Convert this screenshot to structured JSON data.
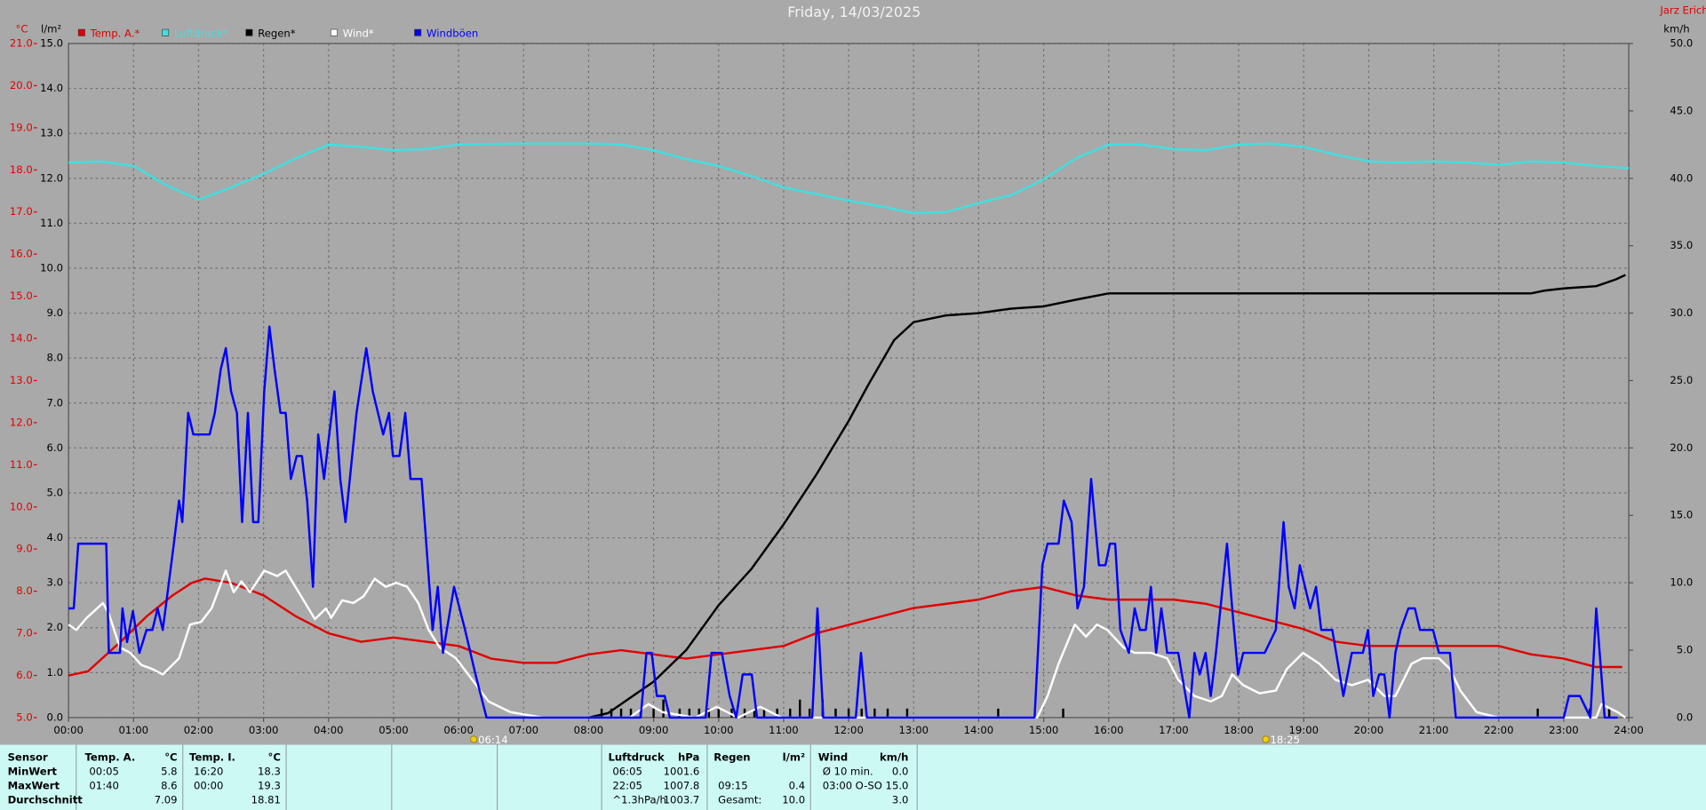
{
  "chart_data": {
    "type": "line",
    "title": "Friday, 14/03/2025",
    "author": "Jarz Erich",
    "y_label": "°C",
    "y3_label": "l/m²",
    "y2_label": "km/h",
    "xlim": [
      0,
      24
    ],
    "xticks": [
      {
        "value": 0,
        "label": "00:00"
      },
      {
        "value": 1,
        "label": "01:00"
      },
      {
        "value": 2,
        "label": "02:00"
      },
      {
        "value": 3,
        "label": "03:00"
      },
      {
        "value": 4,
        "label": "04:00"
      },
      {
        "value": 5,
        "label": "05:00"
      },
      {
        "value": 6,
        "label": "06:00"
      },
      {
        "value": 7,
        "label": "07:00"
      },
      {
        "value": 8,
        "label": "08:00"
      },
      {
        "value": 9,
        "label": "09:00"
      },
      {
        "value": 10,
        "label": "10:00"
      },
      {
        "value": 11,
        "label": "11:00"
      },
      {
        "value": 12,
        "label": "12:00"
      },
      {
        "value": 13,
        "label": "13:00"
      },
      {
        "value": 14,
        "label": "14:00"
      },
      {
        "value": 15,
        "label": "15:00"
      },
      {
        "value": 16,
        "label": "16:00"
      },
      {
        "value": 17,
        "label": "17:00"
      },
      {
        "value": 18,
        "label": "18:00"
      },
      {
        "value": 19,
        "label": "19:00"
      },
      {
        "value": 20,
        "label": "20:00"
      },
      {
        "value": 21,
        "label": "21:00"
      },
      {
        "value": 22,
        "label": "22:00"
      },
      {
        "value": 23,
        "label": "23:00"
      },
      {
        "value": 24,
        "label": "24:00"
      }
    ],
    "ylim": [
      5,
      21
    ],
    "yticks": [
      {
        "value": 5,
        "label": "5.0"
      },
      {
        "value": 6,
        "label": "6.0"
      },
      {
        "value": 7,
        "label": "7.0"
      },
      {
        "value": 8,
        "label": "8.0"
      },
      {
        "value": 9,
        "label": "9.0"
      },
      {
        "value": 10,
        "label": "10.0"
      },
      {
        "value": 11,
        "label": "11.0"
      },
      {
        "value": 12,
        "label": "12.0"
      },
      {
        "value": 13,
        "label": "13.0"
      },
      {
        "value": 14,
        "label": "14.0"
      },
      {
        "value": 15,
        "label": "15.0"
      },
      {
        "value": 16,
        "label": "16.0"
      },
      {
        "value": 17,
        "label": "17.0"
      },
      {
        "value": 18,
        "label": "18.0"
      },
      {
        "value": 19,
        "label": "19.0"
      },
      {
        "value": 20,
        "label": "20.0"
      },
      {
        "value": 21,
        "label": "21.0"
      }
    ],
    "y3lim": [
      0,
      15
    ],
    "y3ticks": [
      {
        "value": 0,
        "label": "0.0"
      },
      {
        "value": 1,
        "label": "1.0"
      },
      {
        "value": 2,
        "label": "2.0"
      },
      {
        "value": 3,
        "label": "3.0"
      },
      {
        "value": 4,
        "label": "4.0"
      },
      {
        "value": 5,
        "label": "5.0"
      },
      {
        "value": 6,
        "label": "6.0"
      },
      {
        "value": 7,
        "label": "7.0"
      },
      {
        "value": 8,
        "label": "8.0"
      },
      {
        "value": 9,
        "label": "9.0"
      },
      {
        "value": 10,
        "label": "10.0"
      },
      {
        "value": 11,
        "label": "11.0"
      },
      {
        "value": 12,
        "label": "12.0"
      },
      {
        "value": 13,
        "label": "13.0"
      },
      {
        "value": 14,
        "label": "14.0"
      },
      {
        "value": 15,
        "label": "15.0"
      }
    ],
    "y2lim": [
      0,
      50
    ],
    "y2ticks": [
      {
        "value": 0,
        "label": "0.0"
      },
      {
        "value": 5,
        "label": "5.0"
      },
      {
        "value": 10,
        "label": "10.0"
      },
      {
        "value": 15,
        "label": "15.0"
      },
      {
        "value": 20,
        "label": "20.0"
      },
      {
        "value": 25,
        "label": "25.0"
      },
      {
        "value": 30,
        "label": "30.0"
      },
      {
        "value": 35,
        "label": "35.0"
      },
      {
        "value": 40,
        "label": "40.0"
      },
      {
        "value": 45,
        "label": "45.0"
      },
      {
        "value": 50,
        "label": "50.0"
      }
    ],
    "pressure_lim": [
      956,
      1016
    ],
    "grid": true,
    "series": [
      {
        "name": "Temp. A.*",
        "color": "#e00000",
        "axis": "y",
        "x": [
          0,
          0.3,
          0.8,
          1.2,
          1.6,
          1.9,
          2.1,
          2.5,
          3,
          3.5,
          4,
          4.5,
          5,
          5.5,
          6,
          6.5,
          7,
          7.5,
          8,
          8.5,
          9,
          9.5,
          10,
          10.5,
          11,
          11.5,
          12,
          12.5,
          13,
          13.5,
          14,
          14.5,
          15,
          15.5,
          16,
          16.5,
          17,
          17.5,
          18,
          18.5,
          19,
          19.5,
          20,
          20.5,
          21,
          21.5,
          22,
          22.5,
          23,
          23.5,
          23.9
        ],
        "values": [
          6.0,
          6.1,
          6.8,
          7.4,
          7.9,
          8.2,
          8.3,
          8.2,
          7.9,
          7.4,
          7.0,
          6.8,
          6.9,
          6.8,
          6.7,
          6.4,
          6.3,
          6.3,
          6.5,
          6.6,
          6.5,
          6.4,
          6.5,
          6.6,
          6.7,
          7.0,
          7.2,
          7.4,
          7.6,
          7.7,
          7.8,
          8.0,
          8.1,
          7.9,
          7.8,
          7.8,
          7.8,
          7.7,
          7.5,
          7.3,
          7.1,
          6.8,
          6.7,
          6.7,
          6.7,
          6.7,
          6.7,
          6.5,
          6.4,
          6.2,
          6.2
        ]
      },
      {
        "name": "Luftdruck*",
        "color": "#40e0e0",
        "axis": "pressure",
        "x": [
          0,
          0.5,
          1,
          1.5,
          2,
          2.5,
          3,
          3.5,
          4,
          4.5,
          5,
          5.5,
          6,
          7,
          8,
          8.5,
          9,
          9.5,
          10,
          10.5,
          11,
          11.5,
          12,
          12.5,
          13,
          13.5,
          14,
          14.5,
          15,
          15.5,
          16,
          16.5,
          17,
          17.5,
          18,
          18.5,
          19,
          19.5,
          20,
          20.5,
          21,
          21.5,
          22,
          22.5,
          23,
          23.5,
          24
        ],
        "values": [
          1005.4,
          1005.5,
          1005.1,
          1003.4,
          1002.1,
          1003.2,
          1004.4,
          1005.8,
          1007.0,
          1006.8,
          1006.5,
          1006.6,
          1007.0,
          1007.1,
          1007.1,
          1007.0,
          1006.5,
          1005.7,
          1005.1,
          1004.2,
          1003.2,
          1002.6,
          1002.0,
          1001.5,
          1000.9,
          1001.0,
          1001.8,
          1002.5,
          1003.9,
          1005.8,
          1007.0,
          1007.0,
          1006.6,
          1006.5,
          1007.0,
          1007.1,
          1006.8,
          1006.1,
          1005.5,
          1005.4,
          1005.5,
          1005.4,
          1005.2,
          1005.5,
          1005.4,
          1005.1,
          1004.9
        ]
      },
      {
        "name": "Regen*",
        "color": "#000000",
        "axis": "y3",
        "x": [
          8,
          8.3,
          8.7,
          9,
          9.5,
          10,
          10.5,
          11,
          11.5,
          12,
          12.3,
          12.7,
          13,
          13.5,
          14,
          14.5,
          15,
          15.5,
          16,
          22.5,
          22.7,
          23,
          23.5,
          23.8,
          23.95
        ],
        "values": [
          0,
          0.1,
          0.5,
          0.8,
          1.5,
          2.5,
          3.3,
          4.3,
          5.4,
          6.6,
          7.4,
          8.4,
          8.8,
          8.95,
          9.0,
          9.1,
          9.15,
          9.3,
          9.44,
          9.44,
          9.5,
          9.55,
          9.6,
          9.75,
          9.85
        ]
      },
      {
        "name": "Wind*",
        "color": "#ffffff",
        "axis": "y2",
        "x": [
          0,
          0.12,
          0.28,
          0.53,
          0.62,
          0.79,
          0.95,
          1.12,
          1.29,
          1.45,
          1.7,
          1.87,
          2.04,
          2.2,
          2.42,
          2.54,
          2.66,
          2.79,
          3.01,
          3.21,
          3.34,
          3.54,
          3.79,
          3.96,
          4.04,
          4.21,
          4.38,
          4.54,
          4.71,
          4.88,
          5.04,
          5.21,
          5.38,
          5.54,
          5.71,
          5.96,
          6.21,
          6.46,
          6.8,
          7.3,
          8.13,
          8.63,
          8.92,
          9.14,
          9.64,
          9.97,
          10.3,
          10.64,
          10.97,
          14.9,
          15.06,
          15.23,
          15.48,
          15.65,
          15.82,
          15.98,
          16.23,
          16.4,
          16.65,
          16.9,
          17.07,
          17.32,
          17.57,
          17.74,
          17.9,
          18.07,
          18.32,
          18.57,
          18.74,
          18.99,
          19.24,
          19.49,
          19.74,
          19.99,
          20.24,
          20.41,
          20.66,
          20.83,
          21.08,
          21.25,
          21.41,
          21.66,
          22,
          23.5,
          23.58,
          23.83,
          23.95
        ],
        "values": [
          6.9,
          6.5,
          7.4,
          8.5,
          7.7,
          5.2,
          4.8,
          3.9,
          3.6,
          3.2,
          4.4,
          6.9,
          7.1,
          8.1,
          10.9,
          9.3,
          10.1,
          9.3,
          10.9,
          10.5,
          10.9,
          9.3,
          7.3,
          8.1,
          7.4,
          8.7,
          8.5,
          9.0,
          10.3,
          9.7,
          10.0,
          9.7,
          8.5,
          6.5,
          5.2,
          4.4,
          2.8,
          1.2,
          0.4,
          0,
          0,
          0,
          1.0,
          0.4,
          0,
          0.8,
          0,
          0.8,
          0,
          0,
          1.6,
          4.0,
          6.9,
          6.0,
          6.9,
          6.5,
          5.2,
          4.8,
          4.8,
          4.4,
          2.8,
          1.6,
          1.2,
          1.6,
          3.2,
          2.4,
          1.8,
          2.0,
          3.6,
          4.8,
          4.0,
          2.8,
          2.4,
          2.8,
          1.6,
          1.6,
          4.0,
          4.4,
          4.4,
          3.6,
          2.0,
          0.4,
          0,
          0,
          1.0,
          0.4,
          0
        ]
      },
      {
        "name": "Windböen",
        "color": "#0000ff",
        "axis": "y2",
        "x": [
          0,
          0.08,
          0.15,
          0.58,
          0.62,
          0.79,
          0.83,
          0.9,
          0.99,
          1.09,
          1.2,
          1.29,
          1.37,
          1.45,
          1.62,
          1.7,
          1.75,
          1.84,
          1.92,
          2.17,
          2.25,
          2.34,
          2.42,
          2.5,
          2.59,
          2.67,
          2.76,
          2.84,
          2.92,
          3.01,
          3.09,
          3.17,
          3.26,
          3.34,
          3.42,
          3.51,
          3.59,
          3.67,
          3.76,
          3.84,
          3.93,
          4.01,
          4.09,
          4.18,
          4.26,
          4.43,
          4.58,
          4.68,
          4.76,
          4.84,
          4.93,
          4.99,
          5.09,
          5.18,
          5.26,
          5.43,
          5.6,
          5.68,
          5.76,
          5.93,
          6.1,
          6.26,
          6.43,
          8.8,
          8.89,
          8.97,
          9.05,
          9.17,
          9.25,
          9.8,
          9.89,
          10.05,
          10.17,
          10.27,
          10.37,
          10.51,
          10.59,
          11.44,
          11.52,
          11.61,
          12.11,
          12.19,
          12.28,
          14.86,
          14.98,
          15.06,
          15.23,
          15.31,
          15.43,
          15.52,
          15.62,
          15.73,
          15.85,
          15.95,
          16.02,
          16.1,
          16.18,
          16.31,
          16.4,
          16.48,
          16.57,
          16.65,
          16.73,
          16.81,
          16.9,
          17.07,
          17.24,
          17.32,
          17.4,
          17.49,
          17.57,
          17.65,
          17.82,
          17.9,
          17.99,
          18.07,
          18.4,
          18.57,
          18.69,
          18.77,
          18.86,
          18.94,
          19.02,
          19.1,
          19.19,
          19.27,
          19.44,
          19.61,
          19.74,
          19.91,
          19.99,
          20.07,
          20.16,
          20.24,
          20.32,
          20.41,
          20.49,
          20.61,
          20.71,
          20.79,
          20.99,
          21.08,
          21.25,
          21.34,
          23,
          23.08,
          23.25,
          23.41,
          23.5,
          23.63,
          23.83
        ],
        "values": [
          8.1,
          8.1,
          12.9,
          12.9,
          4.8,
          4.8,
          8.1,
          5.6,
          7.9,
          4.8,
          6.5,
          6.5,
          8.1,
          6.5,
          12.9,
          16.1,
          14.5,
          22.6,
          21.0,
          21.0,
          22.6,
          25.8,
          27.4,
          24.2,
          22.6,
          14.5,
          22.6,
          14.5,
          14.5,
          24.2,
          29.0,
          25.8,
          22.6,
          22.6,
          17.7,
          19.4,
          19.4,
          16.1,
          9.7,
          21.0,
          17.7,
          21.0,
          24.2,
          17.7,
          14.5,
          22.6,
          27.4,
          24.2,
          22.6,
          21.0,
          22.6,
          19.4,
          19.4,
          22.6,
          17.7,
          17.7,
          6.5,
          9.7,
          4.8,
          9.7,
          6.5,
          3.2,
          0,
          0,
          4.8,
          4.8,
          1.6,
          1.6,
          0,
          0,
          4.8,
          4.8,
          1.6,
          0,
          3.2,
          3.2,
          0,
          0,
          8.1,
          0,
          0,
          4.8,
          0,
          0,
          11.3,
          12.9,
          12.9,
          16.1,
          14.5,
          8.1,
          9.7,
          17.7,
          11.3,
          11.3,
          12.9,
          12.9,
          6.5,
          4.8,
          8.1,
          6.5,
          6.5,
          9.7,
          4.8,
          8.1,
          4.8,
          4.8,
          0,
          4.8,
          3.2,
          4.8,
          1.6,
          4.8,
          12.9,
          8.1,
          3.2,
          4.8,
          4.8,
          6.5,
          14.5,
          9.7,
          8.1,
          11.3,
          9.7,
          8.1,
          9.7,
          6.5,
          6.5,
          1.6,
          4.8,
          4.8,
          6.5,
          1.6,
          3.2,
          3.2,
          0,
          4.8,
          6.5,
          8.1,
          8.1,
          6.5,
          6.5,
          4.8,
          4.8,
          0,
          0,
          1.6,
          1.6,
          0,
          8.1,
          0,
          0
        ]
      }
    ],
    "rain_bars": {
      "color": "#000000",
      "axis": "y3",
      "x": [
        8.2,
        8.35,
        8.5,
        8.65,
        8.8,
        9.0,
        9.15,
        9.4,
        9.55,
        9.7,
        9.85,
        10.0,
        10.2,
        10.4,
        10.55,
        10.7,
        10.9,
        11.1,
        11.25,
        11.4,
        11.6,
        11.8,
        12.0,
        12.2,
        12.4,
        12.6,
        12.9,
        14.3,
        15.3,
        22.6,
        23.4,
        23.7
      ],
      "values": [
        0.2,
        0.2,
        0.2,
        0.2,
        0.2,
        0.2,
        0.4,
        0.2,
        0.2,
        0.2,
        0.2,
        0.2,
        0.2,
        0.2,
        0.2,
        0.2,
        0.2,
        0.2,
        0.4,
        0.2,
        0.4,
        0.2,
        0.2,
        0.2,
        0.2,
        0.2,
        0.2,
        0.2,
        0.2,
        0.2,
        0.2,
        0.2
      ]
    },
    "sun_events": [
      {
        "x": 6.2333,
        "label": "06:14"
      },
      {
        "x": 18.4167,
        "label": "18:25"
      }
    ]
  },
  "stats": {
    "row_labels": [
      "Sensor",
      "MinWert",
      "MaxWert",
      "Durchschnitt"
    ],
    "columns": [
      {
        "name": "Temp. A.",
        "unit": "°C",
        "rows": [
          [
            "00:05",
            "5.8"
          ],
          [
            "01:40",
            "8.6"
          ],
          [
            null,
            "7.09"
          ]
        ]
      },
      {
        "name": "Temp. I.",
        "unit": "°C",
        "rows": [
          [
            "16:20",
            "18.3"
          ],
          [
            "00:00",
            "19.3"
          ],
          [
            null,
            "18.81"
          ]
        ]
      },
      {
        "name": "Luftdruck",
        "unit": "hPa",
        "rows": [
          [
            "06:05",
            "1001.6"
          ],
          [
            "22:05",
            "1007.8"
          ],
          [
            "^1.3hPa/h",
            "1003.7"
          ]
        ]
      },
      {
        "name": "Regen",
        "unit": "l/m²",
        "rows": [
          [
            null,
            null
          ],
          [
            "09:15",
            "0.4"
          ],
          [
            "Gesamt:",
            "10.0"
          ]
        ]
      },
      {
        "name": "Wind",
        "unit": "km/h",
        "rows": [
          [
            "Ø 10 min.",
            "0.0"
          ],
          [
            "03:00",
            "O-SO 15.0"
          ],
          [
            null,
            "3.0"
          ]
        ]
      }
    ]
  }
}
